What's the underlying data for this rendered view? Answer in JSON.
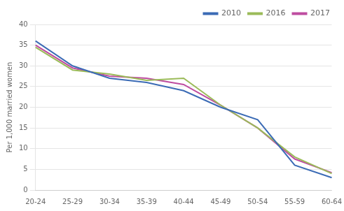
{
  "chart_data": {
    "type": "line",
    "categories": [
      "20-24",
      "25-29",
      "30-34",
      "35-39",
      "40-44",
      "45-49",
      "50-54",
      "55-59",
      "60-64"
    ],
    "series": [
      {
        "name": "2010",
        "color": "#3B6BB5",
        "values": [
          36.0,
          30.0,
          27.0,
          26.0,
          24.0,
          20.0,
          17.0,
          6.0,
          3.0
        ]
      },
      {
        "name": "2016",
        "color": "#9BBB59",
        "values": [
          34.5,
          29.0,
          28.0,
          26.5,
          27.0,
          20.5,
          15.0,
          8.0,
          4.0
        ]
      },
      {
        "name": "2017",
        "color": "#BE4CA0",
        "values": [
          35.0,
          29.5,
          27.5,
          27.0,
          25.5,
          20.5,
          15.0,
          7.5,
          4.2
        ]
      }
    ],
    "ylabel": "Per 1,000 married women",
    "ylim": [
      0,
      40
    ],
    "yticks": [
      0,
      5,
      10,
      15,
      20,
      25,
      30,
      35,
      40
    ],
    "grid": true,
    "legend": "upper right"
  }
}
